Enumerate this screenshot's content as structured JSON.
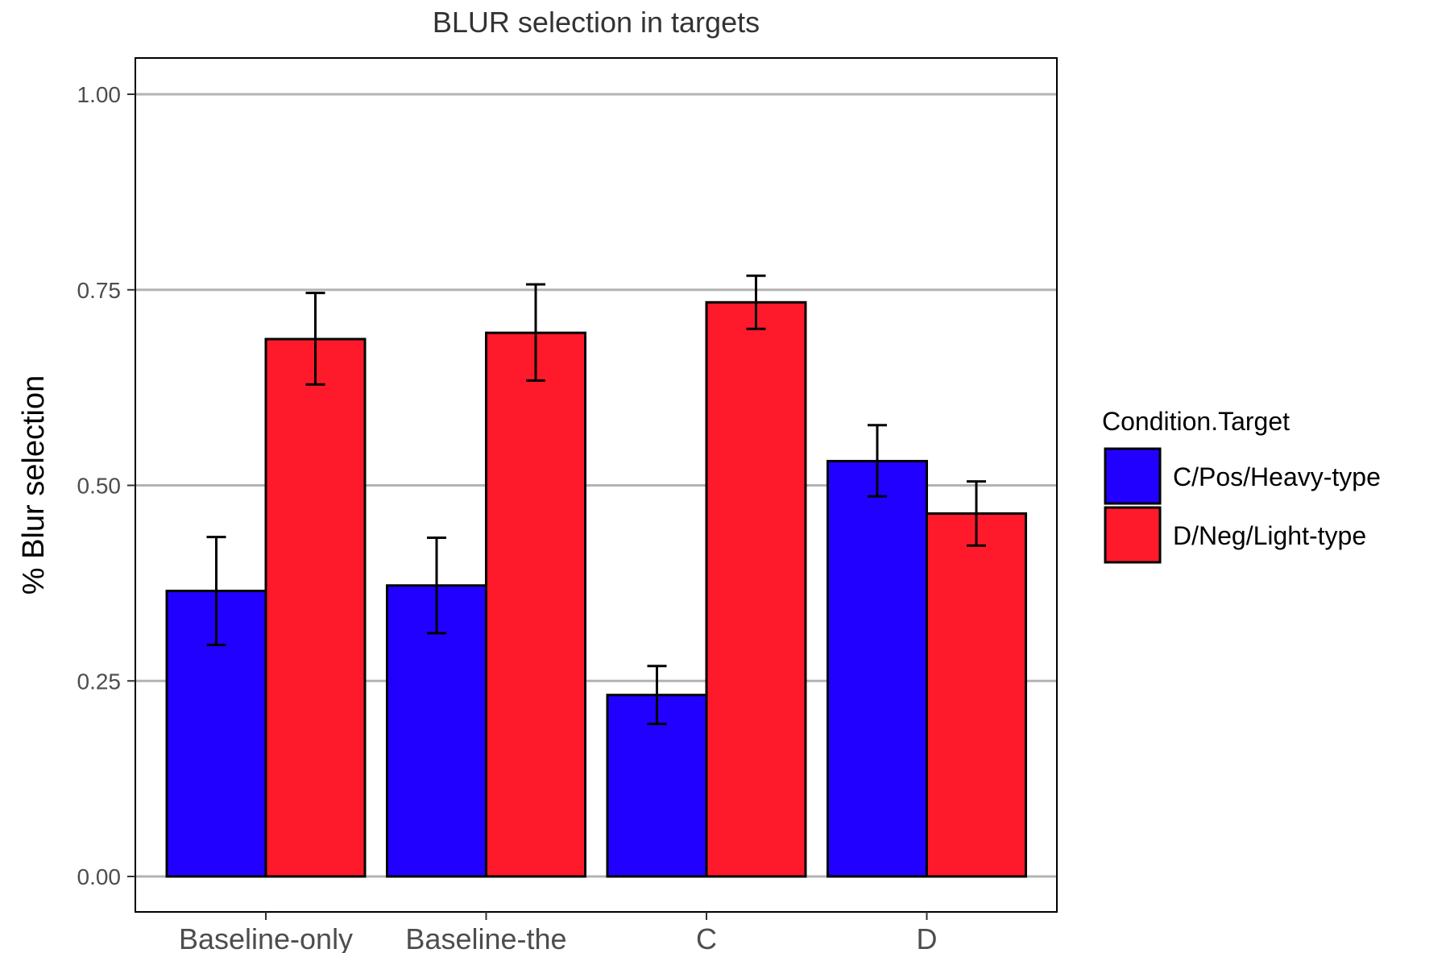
{
  "chart_data": {
    "type": "bar",
    "title": "BLUR selection in targets",
    "xlabel": "",
    "ylabel": "% Blur selection",
    "ylim": [
      -0.05,
      1.05
    ],
    "yticks": [
      "0.00",
      "0.25",
      "0.50",
      "0.75",
      "1.00"
    ],
    "ytick_values": [
      0,
      0.25,
      0.5,
      0.75,
      1.0
    ],
    "grid": true,
    "categories": [
      "Baseline-only",
      "Baseline-the",
      "C",
      "D"
    ],
    "legend": {
      "title": "Condition.Target",
      "placement": "right"
    },
    "series": [
      {
        "name": "C/Pos/Heavy-type",
        "color": "#2200ff",
        "values": [
          0.365,
          0.372,
          0.232,
          0.531
        ],
        "error_low": [
          0.296,
          0.311,
          0.195,
          0.486
        ],
        "error_high": [
          0.434,
          0.433,
          0.269,
          0.577
        ]
      },
      {
        "name": "D/Neg/Light-type",
        "color": "#ff1a2b",
        "values": [
          0.687,
          0.695,
          0.734,
          0.464
        ],
        "error_low": [
          0.629,
          0.634,
          0.7,
          0.423
        ],
        "error_high": [
          0.746,
          0.757,
          0.768,
          0.505
        ]
      }
    ],
    "gridline_color": "#b3b3b3"
  }
}
